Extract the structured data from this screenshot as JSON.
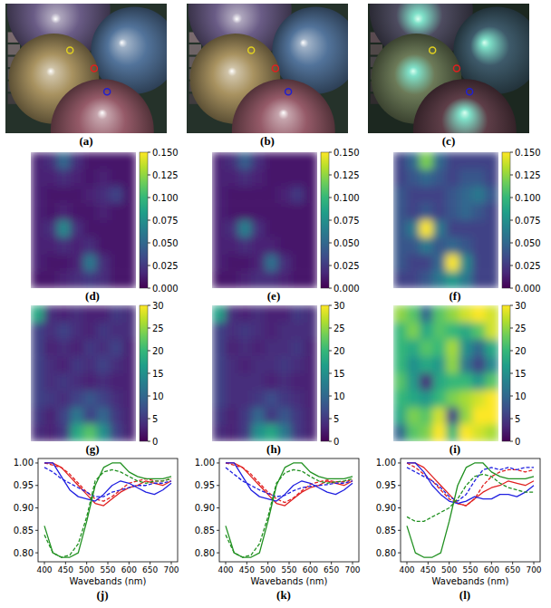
{
  "chart_data": [
    {
      "type": "image",
      "label": "(a)",
      "colors": [
        "#e0d020",
        "#e02020",
        "#2020d0"
      ]
    },
    {
      "type": "image",
      "label": "(b)",
      "colors": [
        "#e0d020",
        "#e02020",
        "#2020d0"
      ]
    },
    {
      "type": "image",
      "label": "(c)",
      "colors": [
        "#e0d020",
        "#e02020",
        "#2020d0"
      ]
    },
    {
      "type": "heatmap",
      "label": "(d)",
      "cells": [
        [
          0.015,
          0.02,
          0.05,
          0.02,
          0.01,
          0.01,
          0.01,
          0.01
        ],
        [
          0.015,
          0.015,
          0.02,
          0.015,
          0.01,
          0.015,
          0.01,
          0.01
        ],
        [
          0.015,
          0.01,
          0.01,
          0.01,
          0.015,
          0.02,
          0.03,
          0.01
        ],
        [
          0.015,
          0.01,
          0.015,
          0.01,
          0.01,
          0.015,
          0.01,
          0.01
        ],
        [
          0.015,
          0.02,
          0.07,
          0.02,
          0.01,
          0.01,
          0.01,
          0.01
        ],
        [
          0.015,
          0.015,
          0.02,
          0.015,
          0.02,
          0.01,
          0.01,
          0.01
        ],
        [
          0.015,
          0.01,
          0.01,
          0.015,
          0.06,
          0.02,
          0.01,
          0.01
        ],
        [
          0.01,
          0.01,
          0.015,
          0.02,
          0.025,
          0.02,
          0.01,
          0.01
        ]
      ],
      "colorbar_range": [
        0,
        0.15
      ],
      "colorbar_ticks": [
        {
          "value": 0,
          "label": "0.000"
        },
        0.025,
        {
          "value": 0.05,
          "label": "0.050"
        },
        0.075,
        {
          "value": 0.1,
          "label": "0.100"
        },
        0.125,
        {
          "value": 0.15,
          "label": "0.150"
        }
      ]
    },
    {
      "type": "heatmap",
      "label": "(e)",
      "cells": [
        [
          0.015,
          0.02,
          0.045,
          0.02,
          0.01,
          0.01,
          0.01,
          0.01
        ],
        [
          0.015,
          0.015,
          0.02,
          0.015,
          0.01,
          0.01,
          0.01,
          0.01
        ],
        [
          0.015,
          0.01,
          0.01,
          0.01,
          0.01,
          0.015,
          0.025,
          0.01
        ],
        [
          0.015,
          0.01,
          0.01,
          0.01,
          0.01,
          0.01,
          0.01,
          0.01
        ],
        [
          0.015,
          0.02,
          0.065,
          0.02,
          0.01,
          0.01,
          0.01,
          0.01
        ],
        [
          0.015,
          0.015,
          0.02,
          0.015,
          0.015,
          0.01,
          0.01,
          0.01
        ],
        [
          0.015,
          0.01,
          0.01,
          0.015,
          0.055,
          0.02,
          0.01,
          0.01
        ],
        [
          0.01,
          0.01,
          0.015,
          0.02,
          0.02,
          0.015,
          0.01,
          0.01
        ]
      ],
      "colorbar_range": [
        0,
        0.15
      ],
      "colorbar_ticks": [
        {
          "value": 0,
          "label": "0.000"
        },
        0.025,
        {
          "value": 0.05,
          "label": "0.050"
        },
        0.075,
        {
          "value": 0.1,
          "label": "0.100"
        },
        0.125,
        {
          "value": 0.15,
          "label": "0.150"
        }
      ]
    },
    {
      "type": "heatmap",
      "label": "(f)",
      "cells": [
        [
          0.03,
          0.05,
          0.12,
          0.05,
          0.03,
          0.03,
          0.03,
          0.03
        ],
        [
          0.03,
          0.04,
          0.05,
          0.04,
          0.03,
          0.04,
          0.04,
          0.03
        ],
        [
          0.04,
          0.03,
          0.03,
          0.03,
          0.04,
          0.05,
          0.06,
          0.04
        ],
        [
          0.04,
          0.03,
          0.04,
          0.03,
          0.04,
          0.05,
          0.04,
          0.03
        ],
        [
          0.04,
          0.06,
          0.15,
          0.06,
          0.03,
          0.03,
          0.03,
          0.03
        ],
        [
          0.04,
          0.04,
          0.06,
          0.04,
          0.05,
          0.04,
          0.03,
          0.03
        ],
        [
          0.04,
          0.03,
          0.03,
          0.05,
          0.15,
          0.07,
          0.03,
          0.03
        ],
        [
          0.03,
          0.03,
          0.04,
          0.06,
          0.08,
          0.06,
          0.03,
          0.03
        ]
      ],
      "colorbar_range": [
        0,
        0.15
      ],
      "colorbar_ticks": [
        {
          "value": 0,
          "label": "0.000"
        },
        0.025,
        {
          "value": 0.05,
          "label": "0.050"
        },
        0.075,
        {
          "value": 0.1,
          "label": "0.100"
        },
        0.125,
        {
          "value": 0.15,
          "label": "0.150"
        }
      ]
    },
    {
      "type": "heatmap",
      "label": "(g)",
      "cells": [
        [
          18,
          4,
          3,
          4,
          3,
          3,
          5,
          4
        ],
        [
          6,
          4,
          6,
          4,
          3,
          5,
          4,
          4
        ],
        [
          6,
          3,
          4,
          3,
          5,
          4,
          6,
          3
        ],
        [
          6,
          4,
          3,
          5,
          4,
          6,
          4,
          3
        ],
        [
          6,
          4,
          5,
          4,
          3,
          4,
          3,
          3
        ],
        [
          6,
          5,
          4,
          6,
          8,
          6,
          4,
          3
        ],
        [
          5,
          3,
          6,
          12,
          6,
          10,
          5,
          3
        ],
        [
          4,
          3,
          5,
          18,
          22,
          15,
          6,
          3
        ]
      ],
      "colorbar_range": [
        0,
        30
      ],
      "colorbar_ticks": [
        0,
        5,
        10,
        15,
        20,
        25,
        30
      ]
    },
    {
      "type": "heatmap",
      "label": "(h)",
      "cells": [
        [
          17,
          4,
          3,
          4,
          3,
          3,
          5,
          4
        ],
        [
          6,
          4,
          5,
          4,
          3,
          4,
          4,
          4
        ],
        [
          6,
          3,
          4,
          3,
          4,
          4,
          5,
          3
        ],
        [
          6,
          4,
          3,
          4,
          4,
          5,
          4,
          3
        ],
        [
          6,
          4,
          4,
          4,
          3,
          4,
          3,
          3
        ],
        [
          6,
          4,
          4,
          5,
          7,
          5,
          4,
          3
        ],
        [
          5,
          3,
          5,
          10,
          5,
          8,
          5,
          3
        ],
        [
          4,
          3,
          5,
          15,
          18,
          12,
          5,
          3
        ]
      ],
      "colorbar_range": [
        0,
        30
      ],
      "colorbar_ticks": [
        0,
        5,
        10,
        15,
        20,
        25,
        30
      ]
    },
    {
      "type": "heatmap",
      "label": "(i)",
      "cells": [
        [
          25,
          22,
          10,
          22,
          25,
          28,
          30,
          28
        ],
        [
          20,
          24,
          18,
          22,
          20,
          18,
          22,
          28
        ],
        [
          20,
          18,
          22,
          20,
          26,
          15,
          10,
          18
        ],
        [
          20,
          15,
          18,
          16,
          25,
          12,
          6,
          14
        ],
        [
          22,
          16,
          4,
          18,
          20,
          20,
          16,
          22
        ],
        [
          20,
          18,
          16,
          20,
          24,
          26,
          28,
          30
        ],
        [
          18,
          24,
          22,
          28,
          6,
          25,
          30,
          30
        ],
        [
          10,
          22,
          24,
          30,
          20,
          30,
          28,
          26
        ]
      ],
      "colorbar_range": [
        0,
        30
      ],
      "colorbar_ticks": [
        0,
        5,
        10,
        15,
        20,
        25,
        30
      ]
    },
    {
      "type": "line",
      "label": "(j)",
      "x_label": "Wavebands (nm)",
      "x": [
        400,
        420,
        440,
        460,
        480,
        500,
        520,
        540,
        560,
        580,
        600,
        620,
        640,
        660,
        680,
        700
      ],
      "xlim": [
        385,
        715
      ],
      "ylim": [
        0.78,
        1.01
      ],
      "xticks": [
        400,
        450,
        500,
        550,
        600,
        650,
        700
      ],
      "yticks": [
        {
          "value": 0.8,
          "label": "0.80"
        },
        0.85,
        {
          "value": 0.9,
          "label": "0.90"
        },
        0.95,
        {
          "value": 1,
          "label": "1.00"
        }
      ],
      "series": [
        {
          "color": "#e02020",
          "line_style": "solid",
          "values": [
            1.0,
            1.0,
            0.99,
            0.97,
            0.95,
            0.93,
            0.91,
            0.905,
            0.92,
            0.935,
            0.945,
            0.95,
            0.96,
            0.955,
            0.95,
            0.96
          ]
        },
        {
          "color": "#e02020",
          "line_style": "dashed",
          "values": [
            1.0,
            0.995,
            0.99,
            0.975,
            0.955,
            0.935,
            0.92,
            0.915,
            0.925,
            0.94,
            0.955,
            0.96,
            0.965,
            0.96,
            0.96,
            0.965
          ]
        },
        {
          "color": "#2020e0",
          "line_style": "solid",
          "values": [
            1.0,
            1.0,
            0.97,
            0.94,
            0.925,
            0.92,
            0.915,
            0.93,
            0.95,
            0.96,
            0.955,
            0.945,
            0.935,
            0.93,
            0.94,
            0.955
          ]
        },
        {
          "color": "#2020e0",
          "line_style": "dashed",
          "values": [
            0.99,
            0.98,
            0.965,
            0.955,
            0.945,
            0.935,
            0.925,
            0.925,
            0.935,
            0.94,
            0.945,
            0.95,
            0.95,
            0.955,
            0.955,
            0.96
          ]
        },
        {
          "color": "#209020",
          "line_style": "solid",
          "values": [
            0.86,
            0.8,
            0.79,
            0.79,
            0.8,
            0.87,
            0.95,
            0.99,
            1.0,
            1.0,
            0.98,
            0.97,
            0.965,
            0.965,
            0.965,
            0.97
          ]
        },
        {
          "color": "#209020",
          "line_style": "dashed",
          "values": [
            0.84,
            0.8,
            0.79,
            0.795,
            0.82,
            0.88,
            0.96,
            0.98,
            0.985,
            0.98,
            0.97,
            0.96,
            0.955,
            0.96,
            0.96,
            0.965
          ]
        }
      ]
    },
    {
      "type": "line",
      "label": "(k)",
      "x_label": "Wavebands (nm)",
      "x": [
        400,
        420,
        440,
        460,
        480,
        500,
        520,
        540,
        560,
        580,
        600,
        620,
        640,
        660,
        680,
        700
      ],
      "xlim": [
        385,
        715
      ],
      "ylim": [
        0.78,
        1.01
      ],
      "xticks": [
        400,
        450,
        500,
        550,
        600,
        650,
        700
      ],
      "yticks": [
        {
          "value": 0.8,
          "label": "0.80"
        },
        0.85,
        {
          "value": 0.9,
          "label": "0.90"
        },
        0.95,
        {
          "value": 1,
          "label": "1.00"
        }
      ],
      "series": [
        {
          "color": "#e02020",
          "line_style": "solid",
          "values": [
            1.0,
            1.0,
            0.99,
            0.97,
            0.95,
            0.93,
            0.91,
            0.905,
            0.92,
            0.935,
            0.945,
            0.95,
            0.96,
            0.955,
            0.95,
            0.96
          ]
        },
        {
          "color": "#e02020",
          "line_style": "dashed",
          "values": [
            1.0,
            0.995,
            0.99,
            0.975,
            0.955,
            0.935,
            0.92,
            0.912,
            0.922,
            0.938,
            0.952,
            0.958,
            0.962,
            0.958,
            0.958,
            0.962
          ]
        },
        {
          "color": "#2020e0",
          "line_style": "solid",
          "values": [
            1.0,
            1.0,
            0.97,
            0.94,
            0.925,
            0.92,
            0.915,
            0.93,
            0.95,
            0.96,
            0.955,
            0.945,
            0.935,
            0.93,
            0.94,
            0.955
          ]
        },
        {
          "color": "#2020e0",
          "line_style": "dashed",
          "values": [
            0.99,
            0.975,
            0.96,
            0.95,
            0.94,
            0.932,
            0.925,
            0.928,
            0.938,
            0.945,
            0.948,
            0.95,
            0.952,
            0.955,
            0.955,
            0.96
          ]
        },
        {
          "color": "#209020",
          "line_style": "solid",
          "values": [
            0.86,
            0.8,
            0.79,
            0.79,
            0.8,
            0.87,
            0.95,
            0.99,
            1.0,
            1.0,
            0.98,
            0.97,
            0.965,
            0.965,
            0.965,
            0.97
          ]
        },
        {
          "color": "#209020",
          "line_style": "dashed",
          "values": [
            0.84,
            0.8,
            0.79,
            0.795,
            0.82,
            0.88,
            0.955,
            0.978,
            0.985,
            0.982,
            0.97,
            0.96,
            0.955,
            0.958,
            0.96,
            0.965
          ]
        }
      ]
    },
    {
      "type": "line",
      "label": "(l)",
      "x_label": "Wavebands (nm)",
      "x": [
        400,
        420,
        440,
        460,
        480,
        500,
        520,
        540,
        560,
        580,
        600,
        620,
        640,
        660,
        680,
        700
      ],
      "xlim": [
        385,
        715
      ],
      "ylim": [
        0.78,
        1.01
      ],
      "xticks": [
        400,
        450,
        500,
        550,
        600,
        650,
        700
      ],
      "yticks": [
        {
          "value": 0.8,
          "label": "0.80"
        },
        0.85,
        {
          "value": 0.9,
          "label": "0.90"
        },
        0.95,
        {
          "value": 1,
          "label": "1.00"
        }
      ],
      "series": [
        {
          "color": "#e02020",
          "line_style": "solid",
          "values": [
            1.0,
            1.0,
            0.99,
            0.97,
            0.95,
            0.93,
            0.91,
            0.905,
            0.92,
            0.935,
            0.945,
            0.95,
            0.96,
            0.955,
            0.95,
            0.96
          ]
        },
        {
          "color": "#e02020",
          "line_style": "dashed",
          "values": [
            1.0,
            0.99,
            0.975,
            0.96,
            0.94,
            0.92,
            0.91,
            0.905,
            0.92,
            0.95,
            0.97,
            0.98,
            0.985,
            0.985,
            0.98,
            0.985
          ]
        },
        {
          "color": "#2020e0",
          "line_style": "solid",
          "values": [
            1.0,
            1.0,
            0.98,
            0.95,
            0.93,
            0.915,
            0.91,
            0.915,
            0.925,
            0.92,
            0.92,
            0.93,
            0.93,
            0.925,
            0.935,
            0.95
          ]
        },
        {
          "color": "#2020e0",
          "line_style": "dashed",
          "values": [
            0.99,
            0.98,
            0.97,
            0.96,
            0.945,
            0.925,
            0.915,
            0.93,
            0.96,
            0.985,
            0.99,
            0.985,
            0.99,
            0.985,
            0.99,
            0.99
          ]
        },
        {
          "color": "#209020",
          "line_style": "solid",
          "values": [
            0.86,
            0.8,
            0.79,
            0.79,
            0.8,
            0.87,
            0.95,
            0.99,
            1.0,
            1.0,
            0.98,
            0.97,
            0.965,
            0.965,
            0.965,
            0.97
          ]
        },
        {
          "color": "#209020",
          "line_style": "dashed",
          "values": [
            0.88,
            0.87,
            0.87,
            0.88,
            0.89,
            0.9,
            0.92,
            0.95,
            0.97,
            0.975,
            0.97,
            0.955,
            0.945,
            0.94,
            0.935,
            0.935
          ]
        }
      ]
    }
  ]
}
